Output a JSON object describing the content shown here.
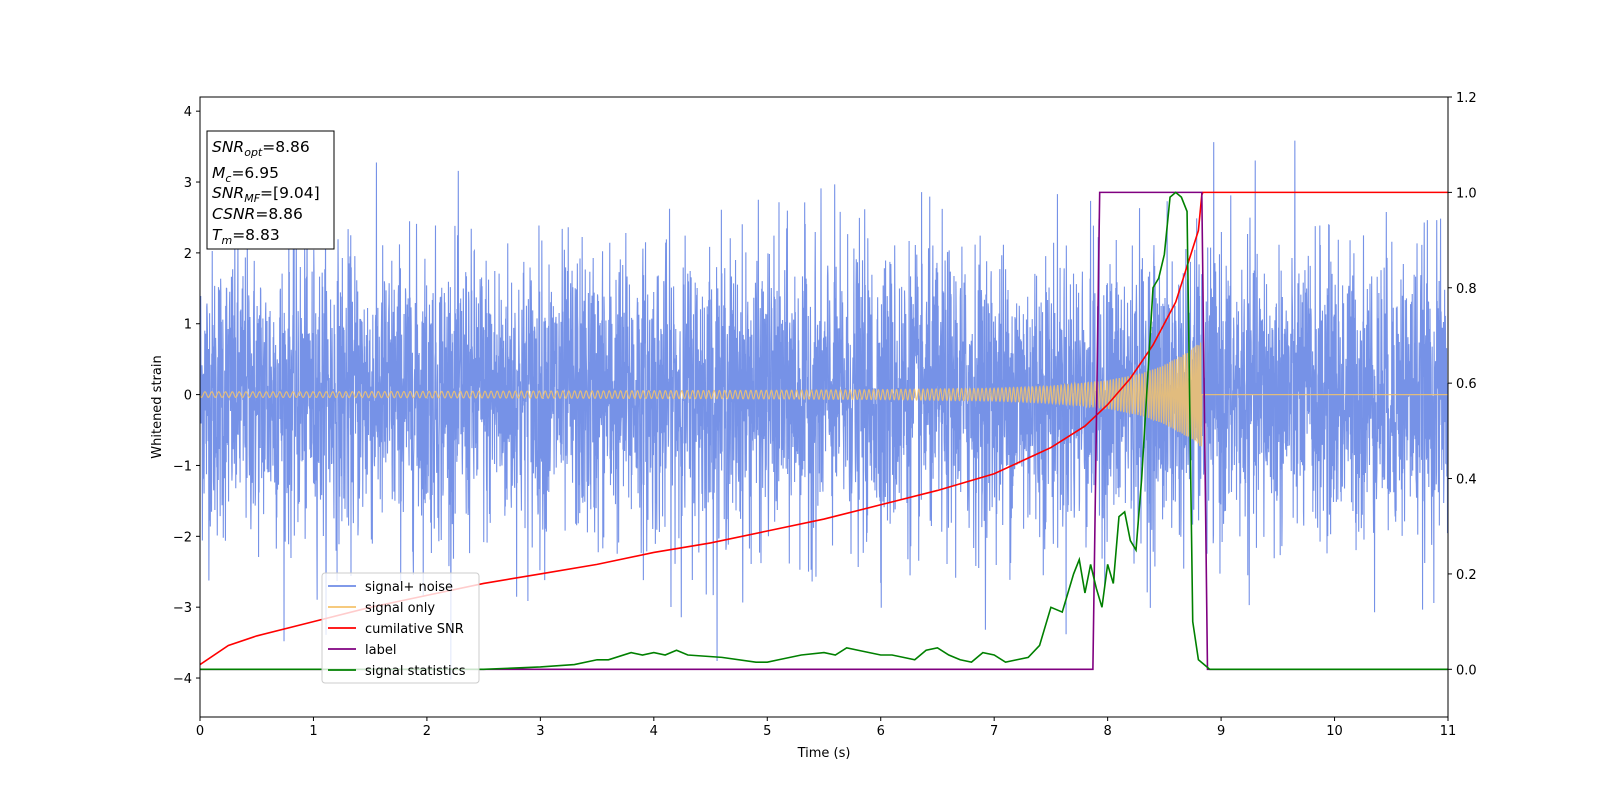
{
  "chart_data": {
    "type": "line",
    "title": "",
    "xlabel": "Time (s)",
    "ylabel": "Whitened strain",
    "xlim": [
      0,
      11
    ],
    "ylim": [
      -4.55,
      4.2
    ],
    "y2lim": [
      -0.1,
      1.2
    ],
    "x_ticks": [
      "0",
      "1",
      "2",
      "3",
      "4",
      "5",
      "6",
      "7",
      "8",
      "9",
      "10",
      "11"
    ],
    "x_tick_values": [
      0,
      1,
      2,
      3,
      4,
      5,
      6,
      7,
      8,
      9,
      10,
      11
    ],
    "y_ticks": [
      "−4",
      "−3",
      "−2",
      "−1",
      "0",
      "1",
      "2",
      "3",
      "4"
    ],
    "y_tick_values": [
      -4,
      -3,
      -2,
      -1,
      0,
      1,
      2,
      3,
      4
    ],
    "y2_ticks": [
      "0.0",
      "0.2",
      "0.4",
      "0.6",
      "0.8",
      "1.0",
      "1.2"
    ],
    "y2_tick_values": [
      0,
      0.2,
      0.4,
      0.6,
      0.8,
      1.0,
      1.2
    ],
    "grid": false,
    "legend_position": "lower-left",
    "annotation": {
      "position": "top-left",
      "lines": [
        {
          "main": "SNR",
          "sub": "opt",
          "value": "=8.86"
        },
        {
          "main": "M",
          "sub": "c",
          "value": "=6.95"
        },
        {
          "main": "SNR",
          "sub": "MF",
          "value": "=[9.04]"
        },
        {
          "main": "CSNR",
          "sub": "",
          "value": "=8.86"
        },
        {
          "main": "T",
          "sub": "m",
          "value": "=8.83"
        }
      ]
    },
    "series": [
      {
        "name": "signal+ noise",
        "color": "#6f8ce6",
        "axis": "left",
        "kind": "noise",
        "noise_sigma": 1.0,
        "noise_range": [
          -4.15,
          3.8
        ],
        "x_range": [
          0,
          11
        ]
      },
      {
        "name": "signal only",
        "color": "#f5c36b",
        "axis": "left",
        "kind": "chirp",
        "x_range": [
          0,
          8.83
        ],
        "envelope": {
          "x": [
            0,
            1,
            2,
            3,
            4,
            5,
            6,
            7,
            7.5,
            8,
            8.3,
            8.5,
            8.7,
            8.83
          ],
          "amp": [
            0.04,
            0.04,
            0.045,
            0.05,
            0.055,
            0.06,
            0.07,
            0.09,
            0.12,
            0.2,
            0.3,
            0.42,
            0.6,
            0.75
          ]
        }
      },
      {
        "name": "cumilative SNR",
        "color": "#ff0000",
        "axis": "right",
        "x": [
          0,
          0.25,
          0.5,
          1,
          1.5,
          2,
          2.5,
          3,
          3.5,
          4,
          4.5,
          5,
          5.5,
          6,
          6.5,
          7,
          7.5,
          7.8,
          8,
          8.2,
          8.4,
          8.6,
          8.8,
          8.83,
          8.84,
          11
        ],
        "y": [
          0.01,
          0.05,
          0.07,
          0.1,
          0.13,
          0.155,
          0.18,
          0.2,
          0.22,
          0.245,
          0.265,
          0.29,
          0.315,
          0.345,
          0.375,
          0.41,
          0.465,
          0.51,
          0.555,
          0.61,
          0.68,
          0.77,
          0.92,
          0.995,
          1.0,
          1.0
        ]
      },
      {
        "name": "label",
        "color": "#800080",
        "axis": "right",
        "x": [
          0,
          7.87,
          7.93,
          8.83,
          8.88,
          11
        ],
        "y": [
          0,
          0,
          1,
          1,
          0,
          0
        ]
      },
      {
        "name": "signal statistics",
        "color": "#008000",
        "axis": "right",
        "x": [
          0,
          0.5,
          1,
          1.5,
          2,
          2.5,
          3,
          3.3,
          3.5,
          3.6,
          3.8,
          3.9,
          4.0,
          4.1,
          4.2,
          4.3,
          4.6,
          4.9,
          5.0,
          5.1,
          5.3,
          5.5,
          5.6,
          5.7,
          5.8,
          5.9,
          6.0,
          6.1,
          6.2,
          6.3,
          6.4,
          6.5,
          6.6,
          6.7,
          6.8,
          6.9,
          7.0,
          7.1,
          7.2,
          7.3,
          7.4,
          7.5,
          7.6,
          7.7,
          7.75,
          7.8,
          7.85,
          7.9,
          7.95,
          8.0,
          8.05,
          8.1,
          8.15,
          8.2,
          8.25,
          8.3,
          8.35,
          8.4,
          8.45,
          8.5,
          8.55,
          8.6,
          8.65,
          8.7,
          8.75,
          8.8,
          8.85,
          8.9,
          11
        ],
        "y": [
          0.0,
          0.0,
          0.0,
          0.0,
          0.0,
          0.0,
          0.005,
          0.01,
          0.02,
          0.02,
          0.035,
          0.03,
          0.035,
          0.03,
          0.04,
          0.03,
          0.025,
          0.015,
          0.015,
          0.02,
          0.03,
          0.035,
          0.03,
          0.045,
          0.04,
          0.035,
          0.03,
          0.03,
          0.025,
          0.02,
          0.04,
          0.045,
          0.03,
          0.02,
          0.015,
          0.035,
          0.03,
          0.015,
          0.02,
          0.025,
          0.05,
          0.13,
          0.12,
          0.2,
          0.23,
          0.16,
          0.22,
          0.17,
          0.13,
          0.22,
          0.18,
          0.32,
          0.33,
          0.27,
          0.25,
          0.4,
          0.6,
          0.8,
          0.82,
          0.87,
          0.99,
          1.0,
          0.99,
          0.96,
          0.1,
          0.02,
          0.01,
          0.0,
          0.0
        ]
      }
    ]
  }
}
